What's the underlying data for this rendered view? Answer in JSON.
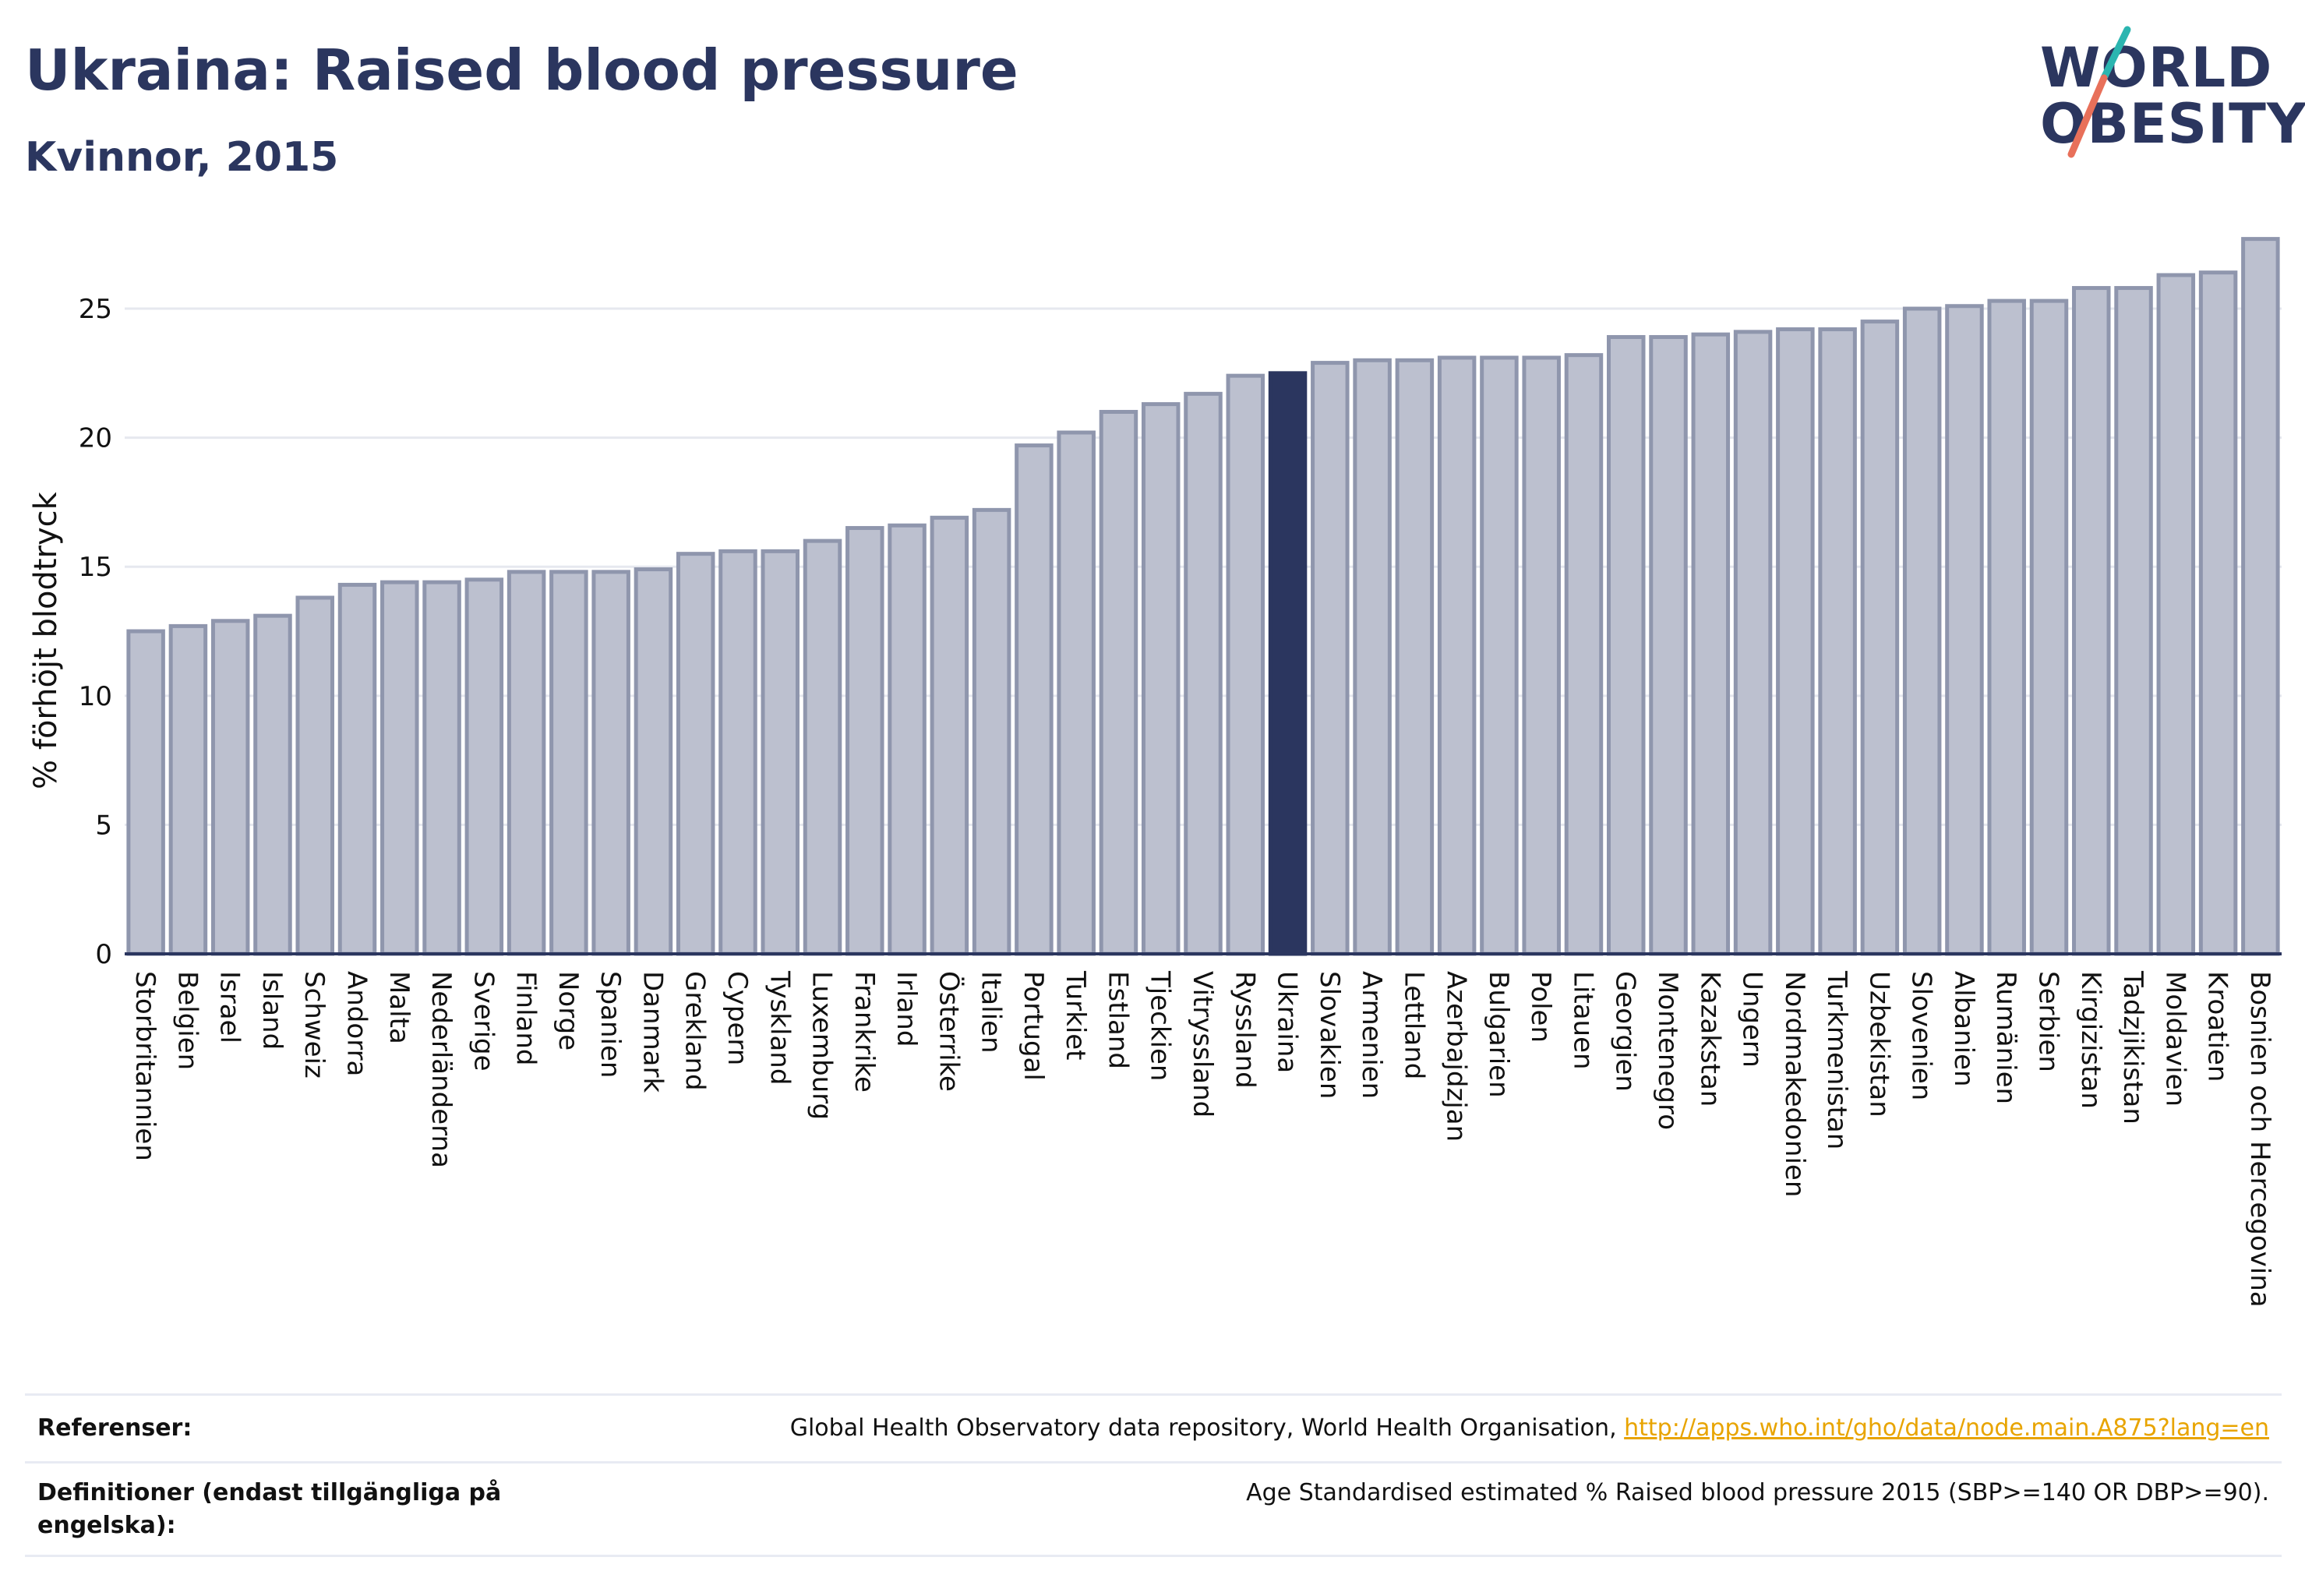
{
  "header": {
    "title": "Ukraina: Raised blood pressure",
    "subtitle": "Kvinnor, 2015"
  },
  "logo": {
    "line1": "WORLD",
    "line2": "OBESITY",
    "accent_teal": "#2bb5b0",
    "accent_coral": "#e8705a"
  },
  "colors": {
    "bar_fill": "#bcc0cf",
    "bar_stroke": "#8f96ad",
    "highlight_fill": "#2b365f",
    "grid": "#e6e8ef",
    "axis": "#2b365f"
  },
  "chart_data": {
    "type": "bar",
    "title": "Ukraina: Raised blood pressure",
    "subtitle": "Kvinnor, 2015",
    "ylabel": "% förhöjt blodtryck",
    "ylim": [
      0,
      27.9
    ],
    "yticks": [
      0,
      5,
      10,
      15,
      20,
      25
    ],
    "grid": true,
    "highlight": "Ukraina",
    "categories": [
      "Storbritannien",
      "Belgien",
      "Israel",
      "Island",
      "Schweiz",
      "Andorra",
      "Malta",
      "Nederländerna",
      "Sverige",
      "Finland",
      "Norge",
      "Spanien",
      "Danmark",
      "Grekland",
      "Cypern",
      "Tyskland",
      "Luxemburg",
      "Frankrike",
      "Irland",
      "Österrike",
      "Italien",
      "Portugal",
      "Turkiet",
      "Estland",
      "Tjeckien",
      "Vitryssland",
      "Ryssland",
      "Ukraina",
      "Slovakien",
      "Armenien",
      "Lettland",
      "Azerbajdzjan",
      "Bulgarien",
      "Polen",
      "Litauen",
      "Georgien",
      "Montenegro",
      "Kazakstan",
      "Ungern",
      "Nordmakedonien",
      "Turkmenistan",
      "Uzbekistan",
      "Slovenien",
      "Albanien",
      "Rumänien",
      "Serbien",
      "Kirgizistan",
      "Tadzjikistan",
      "Moldavien",
      "Kroatien",
      "Bosnien och Hercegovina"
    ],
    "values": [
      12.5,
      12.7,
      12.9,
      13.1,
      13.8,
      14.3,
      14.4,
      14.4,
      14.5,
      14.8,
      14.8,
      14.8,
      14.9,
      15.5,
      15.6,
      15.6,
      16.0,
      16.5,
      16.6,
      16.9,
      17.2,
      19.7,
      20.2,
      21.0,
      21.3,
      21.7,
      22.4,
      22.5,
      22.9,
      23.0,
      23.0,
      23.1,
      23.1,
      23.1,
      23.2,
      23.9,
      23.9,
      24.0,
      24.1,
      24.2,
      24.2,
      24.5,
      25.0,
      25.1,
      25.3,
      25.3,
      25.8,
      25.8,
      26.3,
      26.4,
      27.7
    ]
  },
  "footer": {
    "references_label": "Referenser:",
    "references_text": "Global Health Observatory data repository, World Health Organisation, ",
    "references_link": "http://apps.who.int/gho/data/node.main.A875?lang=en",
    "definitions_label": "Definitioner (endast tillgängliga på engelska):",
    "definitions_text": "Age Standardised estimated % Raised blood pressure 2015 (SBP>=140 OR DBP>=90)."
  }
}
